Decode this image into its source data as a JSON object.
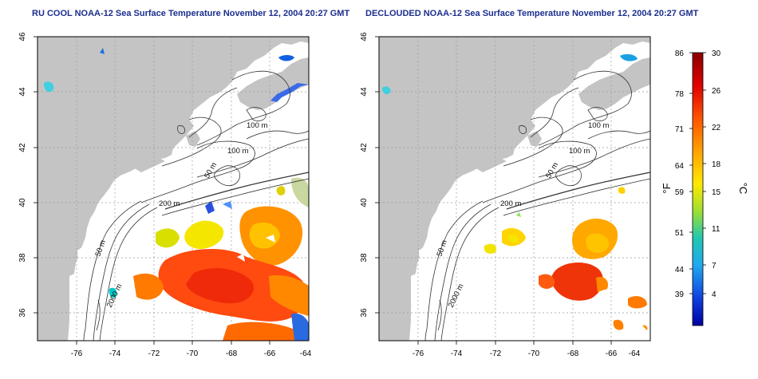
{
  "titles": {
    "left": "RU COOL NOAA-12 Sea Surface Temperature November 12, 2004 20:27 GMT",
    "right": "DECLOUDED NOAA-12 Sea Surface Temperature November 12, 2004 20:27 GMT"
  },
  "axes": {
    "x_ticks": [
      "-76",
      "-74",
      "-72",
      "-70",
      "-68",
      "-66",
      "-64"
    ],
    "y_ticks": [
      "46",
      "44",
      "42",
      "40",
      "38",
      "36"
    ]
  },
  "contour_labels": {
    "m100a": "100 m",
    "m100b": "100 m",
    "m50a": "50 m",
    "m200": "200 m",
    "m50b": "50 m",
    "m2000": "2000 m"
  },
  "colorbar": {
    "fahrenheit_label": "°F",
    "celsius_label": "°C",
    "f_ticks": [
      "86",
      "78",
      "71",
      "64",
      "59",
      "51",
      "44",
      "39"
    ],
    "c_ticks": [
      "30",
      "26",
      "22",
      "18",
      "15",
      "11",
      "7",
      "4"
    ]
  },
  "colors": {
    "land": "#c4c4c4",
    "ocean": "#ffffff",
    "title": "#1c2e8e",
    "contour": "#333333"
  }
}
